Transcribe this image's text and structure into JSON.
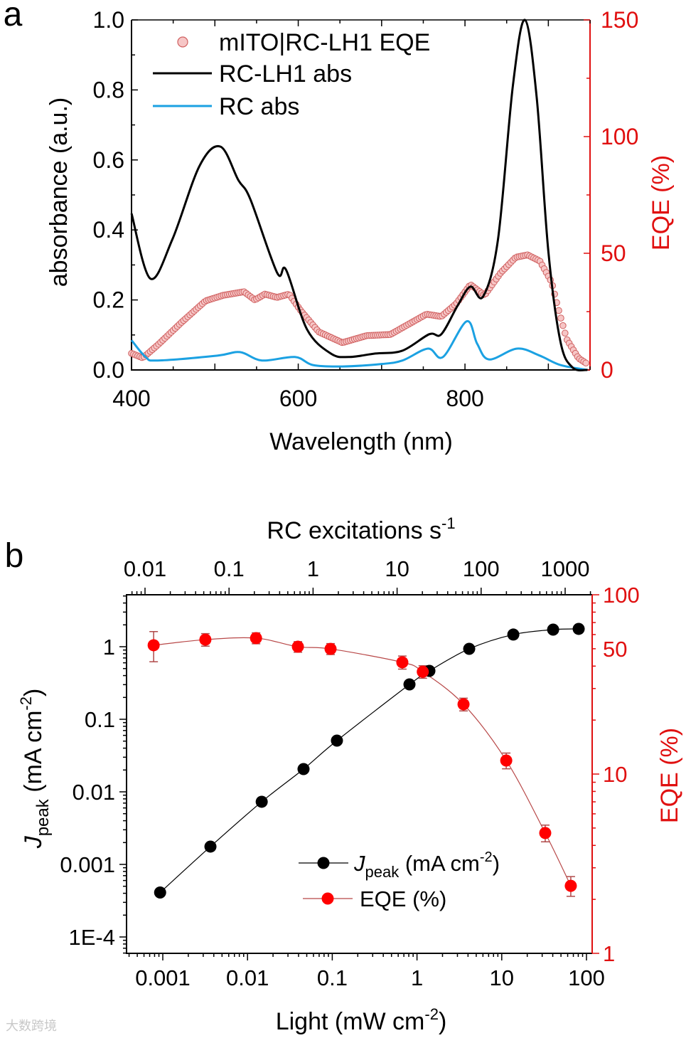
{
  "figure": {
    "watermark": "大数跨境"
  },
  "chart_data": [
    {
      "panel": "a",
      "type": "line",
      "xlabel": "Wavelength (nm)",
      "ylabel": "absorbance (a.u.)",
      "y2label": "EQE (%)",
      "xlim": [
        400,
        950
      ],
      "ylim": [
        0,
        1.0
      ],
      "y2lim": [
        0,
        150
      ],
      "x_ticks": [
        400,
        600,
        800
      ],
      "x_tick_labels": [
        "400",
        "600",
        "800"
      ],
      "y_ticks": [
        0,
        0.2,
        0.4,
        0.6,
        0.8,
        1.0
      ],
      "y_tick_labels": [
        "0.0",
        "0.2",
        "0.4",
        "0.6",
        "0.8",
        "1.0"
      ],
      "y2_ticks": [
        0,
        50,
        100,
        150
      ],
      "y2_tick_labels": [
        "0",
        "50",
        "100",
        "150"
      ],
      "grid": false,
      "legend_position": "top-left",
      "colors": {
        "axis_right": "#e01010"
      },
      "series": [
        {
          "name": "mITO|RC-LH1 EQE",
          "axis": "right",
          "style": "markers",
          "color": "#d06060",
          "fill": "#f6c6c6",
          "x": [
            400,
            413.6,
            431.5,
            460,
            488.8,
            510,
            535,
            548,
            560,
            574.5,
            589,
            603,
            624.6,
            653,
            682,
            710.5,
            753.7,
            771.6,
            789.5,
            806.5,
            823.5,
            843,
            861,
            875,
            889.8,
            904,
            911,
            922,
            936,
            947
          ],
          "y": [
            7.1,
            5.2,
            10.7,
            20.4,
            29.6,
            32,
            33.5,
            30,
            32.5,
            31.1,
            32.5,
            25.4,
            16.3,
            11.7,
            14.7,
            15.2,
            23.9,
            22.9,
            28.4,
            36.6,
            32,
            41.7,
            48.3,
            49.3,
            46.7,
            37.6,
            27.4,
            13.2,
            5.1,
            2.5
          ]
        },
        {
          "name": "RC-LH1 abs",
          "axis": "left",
          "style": "line",
          "color": "#000000",
          "x": [
            400,
            422.6,
            449,
            481.6,
            506.7,
            528,
            542.5,
            574.6,
            585.4,
            610.5,
            639,
            660.6,
            692.5,
            724.8,
            757,
            771.6,
            791,
            806.5,
            821.8,
            839.6,
            857.5,
            872,
            886,
            900,
            914.5,
            929,
            947
          ],
          "y": [
            0.447,
            0.261,
            0.373,
            0.583,
            0.638,
            0.543,
            0.488,
            0.278,
            0.286,
            0.116,
            0.047,
            0.037,
            0.047,
            0.055,
            0.102,
            0.102,
            0.183,
            0.238,
            0.21,
            0.373,
            0.813,
            1.0,
            0.779,
            0.339,
            0.081,
            0.007,
            0.0
          ]
        },
        {
          "name": "RC abs",
          "axis": "left",
          "style": "line",
          "color": "#1ba1e2",
          "x": [
            400,
            417,
            431.5,
            503,
            530,
            556.5,
            596,
            617.7,
            653,
            700,
            725,
            755.6,
            773.6,
            802,
            814.6,
            828.9,
            862.6,
            889.6,
            914.5,
            947
          ],
          "y": [
            0.085,
            0.037,
            0.027,
            0.041,
            0.051,
            0.027,
            0.037,
            0.014,
            0.01,
            0.017,
            0.027,
            0.061,
            0.037,
            0.139,
            0.075,
            0.03,
            0.061,
            0.041,
            0.014,
            0.0
          ]
        }
      ]
    },
    {
      "panel": "b",
      "type": "scatter",
      "xscale": "log",
      "yscale": "log",
      "y2scale": "log",
      "xlabel_parts": [
        "Light (mW cm",
        "-2",
        ")"
      ],
      "x2label_parts": [
        "RC excitations s",
        "-1"
      ],
      "ylabel_parts": [
        "J",
        "peak",
        " (mA cm",
        "-2",
        ")"
      ],
      "y2label": "EQE (%)",
      "xlim": [
        0.00045,
        130
      ],
      "x2lim": [
        0.0128,
        3300
      ],
      "ylim": [
        6e-05,
        5.2
      ],
      "y2lim": [
        1,
        100
      ],
      "x_ticks": [
        0.001,
        0.01,
        0.1,
        1,
        10,
        100
      ],
      "x_tick_labels": [
        "0.001",
        "0.01",
        "0.1",
        "1",
        "10",
        "100"
      ],
      "x2_ticks": [
        0.01,
        0.1,
        1,
        10,
        100,
        1000
      ],
      "x2_tick_labels": [
        "0.01",
        "0.1",
        "1",
        "10",
        "100",
        "1000"
      ],
      "y_ticks": [
        0.0001,
        0.001,
        0.01,
        0.1,
        1
      ],
      "y_tick_labels": [
        "1E-4",
        "0.001",
        "0.01",
        "0.1",
        "1"
      ],
      "y2_ticks": [
        1,
        10,
        50,
        100
      ],
      "y2_tick_labels": [
        "1",
        "10",
        "50",
        "100"
      ],
      "grid": false,
      "legend_position": "bottom-center",
      "legend": [
        {
          "label_parts": [
            "J",
            "peak",
            " (mA cm",
            "-2",
            ")"
          ],
          "color": "#000000"
        },
        {
          "label": "EQE (%)",
          "color": "#ff0000"
        }
      ],
      "series": [
        {
          "name": "Jpeak (mA cm-2)",
          "axis": "left",
          "color": "#000000",
          "line_color": "#000000",
          "x": [
            0.00093,
            0.00365,
            0.0147,
            0.0458,
            0.1135,
            0.815,
            1.4,
            4.13,
            13.7,
            40.4,
            80.9
          ],
          "y": [
            0.00041,
            0.00176,
            0.0073,
            0.0206,
            0.0508,
            0.302,
            0.464,
            0.935,
            1.47,
            1.72,
            1.76
          ]
        },
        {
          "name": "EQE (%)",
          "axis": "right",
          "color": "#ff0000",
          "line_color": "#b84848",
          "error_color": "#b04a4a",
          "x": [
            0.00078,
            0.00318,
            0.0126,
            0.0393,
            0.0955,
            0.671,
            1.17,
            3.54,
            11.3,
            32.6,
            65.3
          ],
          "y": [
            52.3,
            56.2,
            57.3,
            51.3,
            49.9,
            42.0,
            37.2,
            24.5,
            11.9,
            4.69,
            2.38
          ],
          "error": [
            10,
            4.5,
            4,
            3.5,
            3.5,
            3.5,
            3,
            2,
            1.2,
            0.5,
            0.3
          ]
        }
      ]
    }
  ],
  "panel_labels": [
    "a",
    "b"
  ]
}
